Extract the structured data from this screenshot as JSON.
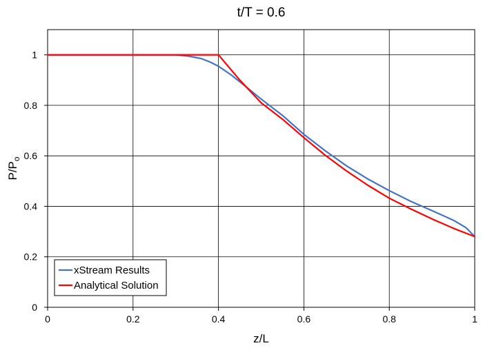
{
  "chart_data": {
    "type": "line",
    "title": "t/T = 0.6",
    "xlabel": "z/L",
    "ylabel": "P/P",
    "ylabel_subscript": "o",
    "xlim": [
      0,
      1
    ],
    "ylim": [
      0,
      1.1
    ],
    "xticks": [
      "0",
      "0.2",
      "0.4",
      "0.6",
      "0.8",
      "1"
    ],
    "yticks": [
      "0",
      "0.2",
      "0.4",
      "0.6",
      "0.8",
      "1"
    ],
    "grid": true,
    "legend_position": "bottom-left",
    "series": [
      {
        "name": "xStream Results",
        "color": "#4472C4",
        "points": [
          [
            0,
            1.0
          ],
          [
            0.1,
            1.0
          ],
          [
            0.2,
            1.0
          ],
          [
            0.3,
            1.0
          ],
          [
            0.33,
            0.995
          ],
          [
            0.36,
            0.985
          ],
          [
            0.38,
            0.972
          ],
          [
            0.4,
            0.955
          ],
          [
            0.43,
            0.92
          ],
          [
            0.46,
            0.88
          ],
          [
            0.5,
            0.825
          ],
          [
            0.55,
            0.76
          ],
          [
            0.6,
            0.685
          ],
          [
            0.65,
            0.62
          ],
          [
            0.7,
            0.56
          ],
          [
            0.75,
            0.508
          ],
          [
            0.8,
            0.462
          ],
          [
            0.85,
            0.42
          ],
          [
            0.9,
            0.383
          ],
          [
            0.95,
            0.345
          ],
          [
            0.98,
            0.315
          ],
          [
            1.0,
            0.28
          ]
        ]
      },
      {
        "name": "Analytical Solution",
        "color": "#FF0000",
        "points": [
          [
            0,
            1.0
          ],
          [
            0.1,
            1.0
          ],
          [
            0.2,
            1.0
          ],
          [
            0.3,
            1.0
          ],
          [
            0.4,
            1.0
          ],
          [
            0.45,
            0.9
          ],
          [
            0.5,
            0.81
          ],
          [
            0.55,
            0.745
          ],
          [
            0.6,
            0.672
          ],
          [
            0.65,
            0.602
          ],
          [
            0.7,
            0.54
          ],
          [
            0.75,
            0.483
          ],
          [
            0.8,
            0.432
          ],
          [
            0.85,
            0.39
          ],
          [
            0.9,
            0.35
          ],
          [
            0.95,
            0.313
          ],
          [
            1.0,
            0.28
          ]
        ]
      }
    ]
  }
}
